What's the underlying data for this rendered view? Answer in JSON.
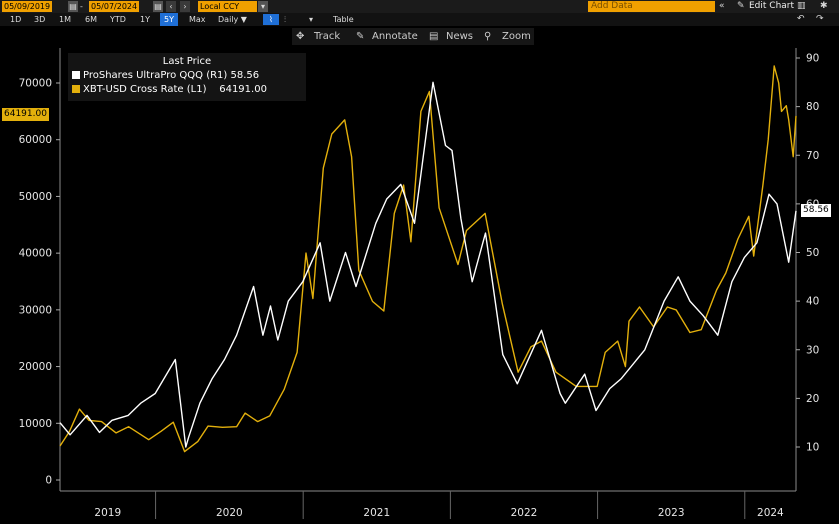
{
  "toolbar": {
    "start_date": "05/09/2019",
    "end_date": "05/07/2024",
    "currency": "Local CCY",
    "add_data_placeholder": "Add Data",
    "edit_chart": "Edit Chart",
    "periods": [
      "1D",
      "3D",
      "1M",
      "6M",
      "YTD",
      "1Y",
      "5Y",
      "Max"
    ],
    "active_period": "5Y",
    "frequency": "Daily ▼",
    "table_label": "Table",
    "icons": [
      "calendar-icon",
      "arrow-left-icon",
      "arrow-right-icon",
      "line-chart-icon",
      "bar-chart-icon",
      "dropdown-icon",
      "collapse-icon",
      "pencil-icon",
      "settings-icon",
      "undo-icon",
      "redo-icon",
      "download-icon"
    ]
  },
  "subbar": {
    "track": "Track",
    "annotate": "Annotate",
    "news": "News",
    "zoom": "Zoom"
  },
  "legend": {
    "title": "Last Price",
    "items": [
      {
        "label": "ProShares UltraPro QQQ  (R1)",
        "value": "58.56",
        "color": "#ffffff"
      },
      {
        "label": "XBT-USD Cross Rate  (L1)",
        "value": "64191.00",
        "color": "#e3b00c"
      }
    ]
  },
  "tags": {
    "left": "64191.00",
    "right": "58.56"
  },
  "chart_data": {
    "type": "line",
    "x_ticks": [
      "2019",
      "2020",
      "2021",
      "2022",
      "2023",
      "2024"
    ],
    "left_axis": {
      "ticks": [
        "0",
        "10000",
        "20000",
        "30000",
        "40000",
        "50000",
        "60000",
        "70000"
      ],
      "range": [
        0,
        75000
      ]
    },
    "right_axis": {
      "ticks": [
        "10",
        "20",
        "30",
        "40",
        "50",
        "60",
        "70",
        "80",
        "90"
      ],
      "range": [
        5,
        92
      ]
    },
    "series": [
      {
        "name": "XBT-USD Cross Rate",
        "axis": "left",
        "color": "#e3b00c",
        "points": [
          [
            "2019-05-09",
            6000
          ],
          [
            "2019-06-01",
            8500
          ],
          [
            "2019-06-26",
            12500
          ],
          [
            "2019-07-20",
            10500
          ],
          [
            "2019-08-20",
            10300
          ],
          [
            "2019-09-25",
            8300
          ],
          [
            "2019-10-26",
            9400
          ],
          [
            "2019-12-15",
            7100
          ],
          [
            "2020-01-15",
            8600
          ],
          [
            "2020-02-14",
            10200
          ],
          [
            "2020-03-13",
            5000
          ],
          [
            "2020-04-15",
            6800
          ],
          [
            "2020-05-10",
            9500
          ],
          [
            "2020-06-15",
            9300
          ],
          [
            "2020-07-20",
            9400
          ],
          [
            "2020-08-10",
            11800
          ],
          [
            "2020-09-10",
            10300
          ],
          [
            "2020-10-10",
            11300
          ],
          [
            "2020-11-15",
            16000
          ],
          [
            "2020-12-17",
            22500
          ],
          [
            "2021-01-08",
            40000
          ],
          [
            "2021-01-25",
            32000
          ],
          [
            "2021-02-20",
            55000
          ],
          [
            "2021-03-13",
            61000
          ],
          [
            "2021-04-14",
            63500
          ],
          [
            "2021-05-01",
            57000
          ],
          [
            "2021-05-19",
            37000
          ],
          [
            "2021-06-22",
            31500
          ],
          [
            "2021-07-20",
            29800
          ],
          [
            "2021-08-15",
            47000
          ],
          [
            "2021-09-07",
            52000
          ],
          [
            "2021-09-25",
            42000
          ],
          [
            "2021-10-20",
            65000
          ],
          [
            "2021-11-10",
            68500
          ],
          [
            "2021-12-04",
            48000
          ],
          [
            "2022-01-20",
            38000
          ],
          [
            "2022-02-10",
            44000
          ],
          [
            "2022-03-28",
            47000
          ],
          [
            "2022-05-10",
            31000
          ],
          [
            "2022-06-18",
            19000
          ],
          [
            "2022-07-20",
            23500
          ],
          [
            "2022-08-15",
            24500
          ],
          [
            "2022-09-20",
            19000
          ],
          [
            "2022-11-09",
            16500
          ],
          [
            "2022-12-31",
            16500
          ],
          [
            "2023-01-20",
            22500
          ],
          [
            "2023-02-20",
            24500
          ],
          [
            "2023-03-11",
            20000
          ],
          [
            "2023-03-20",
            28000
          ],
          [
            "2023-04-15",
            30500
          ],
          [
            "2023-05-20",
            27000
          ],
          [
            "2023-06-23",
            30500
          ],
          [
            "2023-07-15",
            30000
          ],
          [
            "2023-08-18",
            26000
          ],
          [
            "2023-09-15",
            26500
          ],
          [
            "2023-10-23",
            33500
          ],
          [
            "2023-11-15",
            36500
          ],
          [
            "2023-12-15",
            42500
          ],
          [
            "2024-01-11",
            46500
          ],
          [
            "2024-01-23",
            39500
          ],
          [
            "2024-02-15",
            52000
          ],
          [
            "2024-02-28",
            60000
          ],
          [
            "2024-03-14",
            73000
          ],
          [
            "2024-03-25",
            70000
          ],
          [
            "2024-04-01",
            65000
          ],
          [
            "2024-04-13",
            66000
          ],
          [
            "2024-04-19",
            63500
          ],
          [
            "2024-04-30",
            57000
          ],
          [
            "2024-05-07",
            64191
          ]
        ]
      },
      {
        "name": "ProShares UltraPro QQQ",
        "axis": "right",
        "color": "#ffffff",
        "points": [
          [
            "2019-05-09",
            15
          ],
          [
            "2019-06-03",
            12.5
          ],
          [
            "2019-07-15",
            16.5
          ],
          [
            "2019-08-15",
            13
          ],
          [
            "2019-09-15",
            15.5
          ],
          [
            "2019-10-25",
            16.5
          ],
          [
            "2019-11-25",
            19
          ],
          [
            "2019-12-31",
            21
          ],
          [
            "2020-02-19",
            28
          ],
          [
            "2020-03-16",
            10
          ],
          [
            "2020-03-23",
            12
          ],
          [
            "2020-04-20",
            19
          ],
          [
            "2020-05-20",
            24
          ],
          [
            "2020-06-20",
            28
          ],
          [
            "2020-07-20",
            33
          ],
          [
            "2020-08-31",
            43
          ],
          [
            "2020-09-23",
            33
          ],
          [
            "2020-10-12",
            39
          ],
          [
            "2020-10-30",
            32
          ],
          [
            "2020-11-25",
            40
          ],
          [
            "2020-12-31",
            44
          ],
          [
            "2021-02-12",
            52
          ],
          [
            "2021-03-08",
            40
          ],
          [
            "2021-04-16",
            50
          ],
          [
            "2021-05-12",
            43
          ],
          [
            "2021-06-30",
            56
          ],
          [
            "2021-07-27",
            61
          ],
          [
            "2021-08-31",
            64
          ],
          [
            "2021-10-04",
            56
          ],
          [
            "2021-11-19",
            85
          ],
          [
            "2021-12-20",
            72
          ],
          [
            "2022-01-05",
            71
          ],
          [
            "2022-01-27",
            57
          ],
          [
            "2022-02-24",
            44
          ],
          [
            "2022-03-29",
            54
          ],
          [
            "2022-05-11",
            29
          ],
          [
            "2022-06-16",
            23
          ],
          [
            "2022-08-15",
            34
          ],
          [
            "2022-09-30",
            21
          ],
          [
            "2022-10-13",
            19
          ],
          [
            "2022-11-30",
            25
          ],
          [
            "2022-12-28",
            17.5
          ],
          [
            "2023-01-31",
            22
          ],
          [
            "2023-02-28",
            24
          ],
          [
            "2023-04-28",
            30
          ],
          [
            "2023-06-15",
            40
          ],
          [
            "2023-07-20",
            45
          ],
          [
            "2023-08-18",
            40
          ],
          [
            "2023-09-20",
            37
          ],
          [
            "2023-10-26",
            33
          ],
          [
            "2023-11-30",
            44
          ],
          [
            "2023-12-31",
            49
          ],
          [
            "2024-01-31",
            52
          ],
          [
            "2024-03-01",
            62
          ],
          [
            "2024-03-21",
            60
          ],
          [
            "2024-04-19",
            48
          ],
          [
            "2024-05-07",
            58.56
          ]
        ]
      }
    ]
  }
}
